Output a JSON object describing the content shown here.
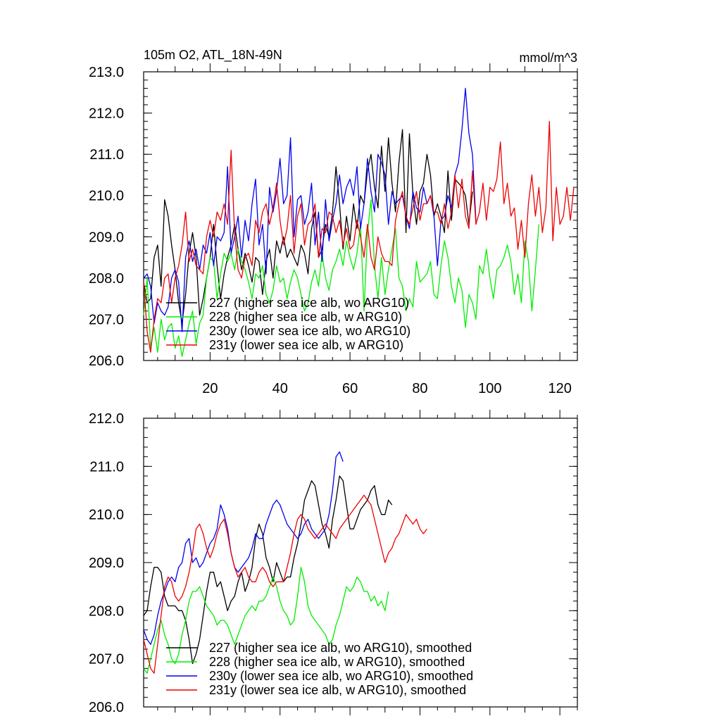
{
  "chart_data": [
    {
      "type": "line",
      "title": "105m O2, ATL_18N-49N",
      "units": "mmol/m^3",
      "ylim": [
        206,
        213
      ],
      "xlim": [
        1,
        125
      ],
      "yticks": [
        "206.0",
        "207.0",
        "208.0",
        "209.0",
        "210.0",
        "211.0",
        "212.0",
        "213.0"
      ],
      "xticks": [
        "20",
        "40",
        "60",
        "80",
        "100",
        "120"
      ],
      "grid": false,
      "legend_position": "bottom-left",
      "series": [
        {
          "name": "227 (higher sea ice alb, wo ARG10)",
          "color": "#000000",
          "values": [
            207.9,
            207.4,
            207.5,
            208.5,
            208.8,
            207.8,
            209.9,
            209.5,
            208.8,
            208.2,
            207.4,
            206.9,
            207.6,
            208.6,
            209.1,
            208.5,
            207.1,
            207.5,
            208.0,
            208.5,
            209.3,
            208.3,
            207.5,
            208.1,
            208.5,
            208.8,
            209.3,
            208.7,
            208.2,
            208.6,
            208.3,
            207.9,
            208.5,
            208.4,
            207.6,
            208.4,
            208.7,
            208.0,
            208.9,
            208.6,
            209.0,
            208.5,
            208.7,
            208.5,
            208.3,
            208.8,
            208.6,
            208.1,
            209.2,
            209.6,
            208.5,
            208.7,
            209.3,
            209.0,
            209.6,
            210.7,
            209.8,
            208.7,
            209.5,
            208.9,
            209.8,
            209.2,
            210.0,
            209.8,
            210.6,
            211.0,
            210.2,
            209.7,
            211.2,
            210.1,
            211.4,
            210.3,
            209.6,
            210.8,
            211.6,
            209.1,
            211.5,
            210.0,
            209.3,
            210.1,
            210.3,
            211.0,
            210.5,
            209.5,
            209.8,
            209.5,
            209.1,
            210.6,
            209.4,
            210.4,
            210.3,
            210.2,
            210.0,
            209.3,
            210.1
          ]
        },
        {
          "name": "228 (higher sea ice alb, w ARG10)",
          "color": "#00ee00",
          "values": [
            207.1,
            208.0,
            206.3,
            206.8,
            206.2,
            207.0,
            206.5,
            206.8,
            206.9,
            206.3,
            206.6,
            206.1,
            206.5,
            206.9,
            207.2,
            206.4,
            206.9,
            207.1,
            208.0,
            208.5,
            208.4,
            207.5,
            208.1,
            208.6,
            208.4,
            208.6,
            208.2,
            208.7,
            208.4,
            208.2,
            207.9,
            207.5,
            208.1,
            208.0,
            208.3,
            207.6,
            207.4,
            207.7,
            208.3,
            207.9,
            208.0,
            207.5,
            207.9,
            208.2,
            208.0,
            207.6,
            207.2,
            207.4,
            207.9,
            208.2,
            207.8,
            208.6,
            208.0,
            207.7,
            208.2,
            208.4,
            208.7,
            208.3,
            208.9,
            208.5,
            208.2,
            208.6,
            209.3,
            207.2,
            209.1,
            209.9,
            208.3,
            207.5,
            208.5,
            207.6,
            208.2,
            208.7,
            209.2,
            208.0,
            207.8,
            207.2,
            207.5,
            207.3,
            208.4,
            207.9,
            208.0,
            208.1,
            208.4,
            207.6,
            207.5,
            208.3,
            208.9,
            208.5,
            207.8,
            207.4,
            208.0,
            207.7,
            206.8,
            207.6,
            207.4,
            207.0,
            208.3,
            208.1,
            208.7,
            208.0,
            207.5,
            208.2,
            208.3,
            208.5,
            208.8,
            208.4,
            207.6,
            208.1,
            207.4,
            208.9,
            208.4,
            207.2,
            208.2,
            209.3
          ]
        },
        {
          "name": "230y (lower sea ice alb, wo ARG10)",
          "color": "#0000ee",
          "values": [
            208.0,
            208.1,
            207.8,
            206.9,
            207.4,
            207.2,
            207.1,
            207.3,
            208.0,
            208.2,
            207.9,
            206.7,
            208.5,
            208.9,
            208.4,
            208.7,
            208.2,
            208.8,
            208.6,
            209.1,
            208.3,
            209.0,
            208.9,
            209.1,
            210.7,
            208.6,
            209.0,
            209.5,
            208.5,
            209.4,
            208.9,
            209.8,
            210.4,
            208.8,
            209.3,
            208.1,
            210.2,
            209.6,
            210.1,
            210.9,
            209.8,
            210.0,
            211.4,
            209.0,
            209.9,
            210.0,
            209.3,
            209.6,
            210.3,
            208.8,
            209.6,
            208.4,
            209.9,
            208.9,
            209.4,
            209.8,
            210.5,
            209.8,
            210.2,
            210.4,
            210.0,
            210.7,
            209.2,
            209.8,
            210.9,
            210.1,
            209.6,
            211.0,
            210.8,
            210.5,
            209.3,
            210.1,
            209.8,
            209.9,
            210.0,
            209.5,
            209.2,
            210.1,
            209.7,
            209.6,
            210.2,
            209.8,
            210.0,
            209.5,
            208.3,
            209.4,
            209.5,
            210.0,
            209.7,
            210.5,
            210.8,
            211.6,
            212.6,
            211.5,
            211.0,
            209.4
          ]
        },
        {
          "name": "231y (lower sea ice alb, w ARG10)",
          "color": "#ee0000",
          "values": [
            207.9,
            206.7,
            206.2,
            207.0,
            207.5,
            207.4,
            208.0,
            208.1,
            207.4,
            208.0,
            208.3,
            208.8,
            209.6,
            208.4,
            208.7,
            208.3,
            208.2,
            208.1,
            209.0,
            209.4,
            209.0,
            209.6,
            209.4,
            209.8,
            209.3,
            211.1,
            209.1,
            208.2,
            208.0,
            208.5,
            208.6,
            208.3,
            209.4,
            209.1,
            209.6,
            209.8,
            209.3,
            209.7,
            210.3,
            209.4,
            208.8,
            209.2,
            210.0,
            208.6,
            209.5,
            209.8,
            208.8,
            209.3,
            209.4,
            209.8,
            208.5,
            209.2,
            209.1,
            209.6,
            209.5,
            209.1,
            209.4,
            208.8,
            209.2,
            208.7,
            208.8,
            209.4,
            209.0,
            208.5,
            209.3,
            208.5,
            208.2,
            209.0,
            208.6,
            208.4,
            208.4,
            208.3,
            209.4,
            209.8,
            210.1,
            209.5,
            209.3,
            209.7,
            210.1,
            209.4,
            209.8,
            209.8,
            210.0,
            209.6,
            209.6,
            209.3,
            209.8,
            209.2,
            209.6,
            210.5,
            209.7,
            210.4,
            209.5,
            209.2,
            210.6,
            209.3,
            209.6,
            210.3,
            209.4,
            210.2,
            210.1,
            210.4,
            211.3,
            209.8,
            210.3,
            209.5,
            209.7,
            208.7,
            209.4,
            208.5,
            209.8,
            210.5,
            209.5,
            210.2,
            209.1,
            209.7,
            211.8,
            208.9,
            210.2,
            209.3,
            209.5,
            210.2,
            209.4,
            210.2
          ]
        }
      ]
    },
    {
      "type": "line",
      "ylim": [
        206,
        212
      ],
      "xlim": [
        1,
        125
      ],
      "yticks": [
        "206.0",
        "207.0",
        "208.0",
        "209.0",
        "210.0",
        "211.0",
        "212.0"
      ],
      "grid": false,
      "legend_position": "bottom-left",
      "series": [
        {
          "name": "227 (higher sea ice alb, wo ARG10), smoothed",
          "color": "#000000",
          "values": [
            207.9,
            208.0,
            208.5,
            208.9,
            208.9,
            208.8,
            208.3,
            208.1,
            208.1,
            208.1,
            208.0,
            208.0,
            207.8,
            207.4,
            206.9,
            207.1,
            207.4,
            207.9,
            208.4,
            208.8,
            208.8,
            208.5,
            208.6,
            208.3,
            208.0,
            208.2,
            208.3,
            208.6,
            208.8,
            208.4,
            208.6,
            208.9,
            209.5,
            209.8,
            209.6,
            209.1,
            208.9,
            208.6,
            209.0,
            208.8,
            208.6,
            208.7,
            208.7,
            209.1,
            209.4,
            209.8,
            210.3,
            210.5,
            210.7,
            210.6,
            210.2,
            209.8,
            209.6,
            209.3,
            209.9,
            210.3,
            210.8,
            210.7,
            210.2,
            209.7,
            209.7,
            209.9,
            210.1,
            210.2,
            210.3,
            210.5,
            210.6,
            210.2,
            210.0,
            210.0,
            210.3,
            210.2
          ]
        },
        {
          "name": "228 (higher sea ice alb, w ARG10), smoothed",
          "color": "#00ee00",
          "values": [
            206.8,
            206.7,
            207.0,
            207.3,
            207.6,
            207.8,
            207.5,
            207.3,
            207.0,
            206.9,
            207.1,
            207.5,
            207.8,
            208.2,
            208.4,
            208.4,
            208.5,
            208.3,
            208.1,
            208.0,
            207.9,
            207.7,
            207.8,
            207.8,
            207.7,
            207.5,
            207.3,
            207.5,
            207.7,
            207.9,
            208.0,
            208.1,
            208.0,
            208.2,
            208.2,
            208.3,
            208.5,
            208.7,
            208.5,
            208.2,
            208.0,
            207.9,
            207.7,
            207.8,
            208.3,
            208.9,
            208.6,
            208.1,
            207.9,
            207.8,
            207.7,
            207.6,
            207.5,
            207.3,
            207.4,
            207.7,
            207.9,
            208.2,
            208.5,
            208.4,
            208.5,
            208.7,
            208.6,
            208.4,
            208.4,
            208.2,
            208.3,
            208.1,
            208.2,
            208.0,
            208.4
          ]
        },
        {
          "name": "230y (lower sea ice alb, wo ARG10), smoothed",
          "color": "#0000ee",
          "values": [
            207.6,
            207.4,
            207.3,
            207.5,
            207.9,
            208.2,
            208.4,
            208.6,
            208.7,
            208.6,
            208.9,
            209.0,
            209.4,
            209.5,
            209.0,
            209.1,
            208.9,
            209.0,
            209.2,
            209.4,
            209.5,
            209.7,
            210.2,
            210.0,
            209.7,
            209.2,
            208.9,
            208.8,
            208.9,
            209.0,
            209.1,
            209.3,
            209.6,
            209.5,
            209.5,
            209.8,
            210.0,
            210.2,
            210.3,
            210.2,
            210.0,
            209.8,
            209.7,
            209.6,
            209.5,
            209.6,
            209.8,
            209.9,
            209.7,
            209.6,
            209.5,
            209.6,
            209.7,
            210.0,
            210.5,
            211.2,
            211.3,
            211.1
          ]
        },
        {
          "name": "231y (lower sea ice alb, w ARG10), smoothed",
          "color": "#ee0000",
          "values": [
            207.4,
            207.1,
            206.8,
            206.7,
            207.3,
            207.9,
            208.5,
            208.7,
            208.6,
            208.3,
            208.2,
            208.3,
            208.5,
            208.8,
            209.2,
            209.7,
            209.8,
            209.6,
            209.3,
            209.1,
            209.3,
            209.6,
            209.8,
            209.9,
            209.6,
            209.2,
            208.9,
            208.7,
            208.8,
            208.9,
            208.7,
            208.6,
            208.6,
            208.8,
            208.9,
            208.8,
            208.6,
            208.5,
            208.6,
            208.6,
            208.6,
            208.9,
            209.2,
            209.6,
            209.9,
            210.0,
            209.9,
            209.7,
            209.6,
            209.5,
            209.6,
            209.7,
            209.8,
            209.7,
            209.6,
            209.5,
            209.7,
            209.8,
            209.9,
            210.0,
            210.1,
            210.2,
            210.3,
            210.4,
            210.3,
            210.2,
            209.9,
            209.6,
            209.3,
            209.0,
            209.2,
            209.3,
            209.5,
            209.6,
            209.8,
            210.0,
            209.9,
            209.8,
            209.9,
            209.7,
            209.6,
            209.7
          ]
        }
      ]
    }
  ]
}
